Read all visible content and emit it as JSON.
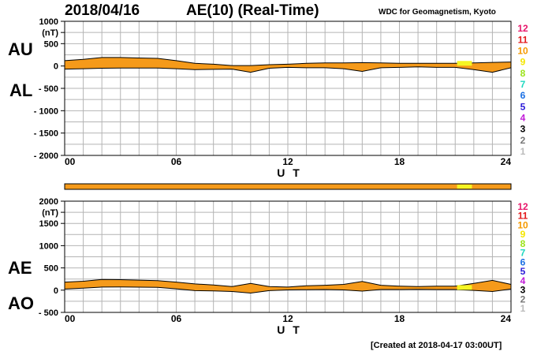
{
  "header": {
    "date": "2018/04/16",
    "title": "AE(10) (Real-Time)",
    "org": "WDC for Geomagnetism, Kyoto",
    "created": "[Created at 2018-04-17 03:00UT]"
  },
  "labels": {
    "au": "AU",
    "al": "AL",
    "ae": "AE",
    "ao": "AO"
  },
  "legend": {
    "items": [
      "12",
      "11",
      "10",
      "9",
      "8",
      "7",
      "6",
      "5",
      "4",
      "3",
      "2",
      "1"
    ],
    "colors": [
      "#e8176b",
      "#e31a1c",
      "#f59a00",
      "#f5e600",
      "#9be31a",
      "#20d8c0",
      "#1a6fe3",
      "#2a1ad8",
      "#c11ad8",
      "#000000",
      "#777777",
      "#bbbbbb"
    ]
  },
  "colors": {
    "band": "#f59a1a",
    "yellow": "#f5f523",
    "grid": "#b4b4b4"
  },
  "chart_data": [
    {
      "type": "area",
      "title": "AU / AL",
      "xlabel": "U T",
      "ylabel": "(nT)",
      "xlim": [
        0,
        24
      ],
      "ylim": [
        -2000,
        1000
      ],
      "xticks": [
        "00",
        "06",
        "12",
        "18",
        "24"
      ],
      "yticks": [
        "1000",
        "(nT)",
        "500",
        "0",
        "- 500",
        "- 1000",
        "- 1500",
        "- 2000"
      ],
      "x": [
        0,
        1,
        2,
        3,
        4,
        5,
        6,
        7,
        8,
        9,
        10,
        11,
        12,
        13,
        14,
        15,
        16,
        17,
        18,
        19,
        20,
        21,
        22,
        23,
        24
      ],
      "series": [
        {
          "name": "AU",
          "values": [
            120,
            150,
            190,
            190,
            180,
            170,
            120,
            60,
            40,
            10,
            10,
            30,
            40,
            60,
            70,
            70,
            75,
            70,
            60,
            60,
            60,
            60,
            70,
            80,
            90
          ]
        },
        {
          "name": "AL",
          "values": [
            -70,
            -60,
            -50,
            -45,
            -45,
            -45,
            -60,
            -80,
            -75,
            -70,
            -140,
            -50,
            -30,
            -40,
            -40,
            -60,
            -120,
            -40,
            -30,
            -20,
            -30,
            -30,
            -80,
            -140,
            -40
          ]
        }
      ]
    },
    {
      "type": "area",
      "title": "AE / AO",
      "xlabel": "U T",
      "ylabel": "(nT)",
      "xlim": [
        0,
        24
      ],
      "ylim": [
        -500,
        2000
      ],
      "xticks": [
        "00",
        "06",
        "12",
        "18",
        "24"
      ],
      "yticks": [
        "2000",
        "(nT)",
        "1500",
        "1000",
        "500",
        "0",
        "- 500"
      ],
      "x": [
        0,
        1,
        2,
        3,
        4,
        5,
        6,
        7,
        8,
        9,
        10,
        11,
        12,
        13,
        14,
        15,
        16,
        17,
        18,
        19,
        20,
        21,
        22,
        23,
        24
      ],
      "series": [
        {
          "name": "AE",
          "values": [
            180,
            200,
            240,
            235,
            225,
            215,
            180,
            140,
            115,
            80,
            150,
            80,
            70,
            100,
            110,
            130,
            195,
            110,
            90,
            80,
            90,
            90,
            150,
            220,
            130
          ]
        },
        {
          "name": "AO",
          "values": [
            25,
            45,
            70,
            72,
            68,
            62,
            30,
            -10,
            -17,
            -30,
            -65,
            -10,
            5,
            10,
            15,
            5,
            -22,
            15,
            15,
            20,
            15,
            15,
            -5,
            -30,
            25
          ]
        }
      ]
    }
  ]
}
